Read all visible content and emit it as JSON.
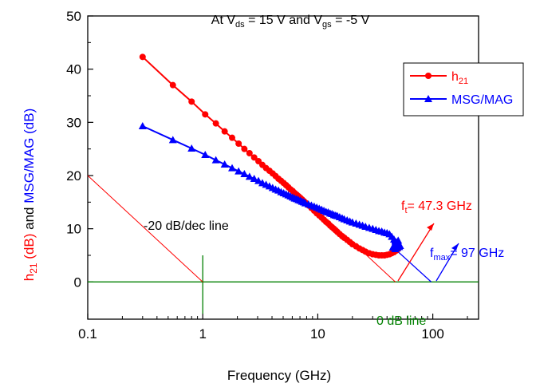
{
  "chart_data": {
    "type": "line",
    "title": "At V_ds = 15 V and V_gs = -5 V",
    "title_parts": {
      "at": "At V",
      "ds_sub": "ds",
      "mid": " = 15 V and V",
      "gs_sub": "gs",
      "end": " = -5 V"
    },
    "xlabel": "Frequency (GHz)",
    "ylabel": {
      "h21_main": "h",
      "h21_sub": "21",
      "h21_unit": " (dB)",
      "and": " and ",
      "msg": "MSG/MAG (dB)"
    },
    "x_scale": "log",
    "xlim": [
      0.1,
      250
    ],
    "ylim": [
      -7,
      50
    ],
    "x_ticks": [
      0.1,
      1,
      10,
      100
    ],
    "x_tick_labels": [
      "0.1",
      "1",
      "10",
      "100"
    ],
    "y_ticks": [
      0,
      10,
      20,
      30,
      40,
      50
    ],
    "y_tick_labels": [
      "0",
      "10",
      "20",
      "30",
      "40",
      "50"
    ],
    "grid": false,
    "legend_position": "top-right",
    "series": [
      {
        "name": "h21",
        "legend_main": "h",
        "legend_sub": "21",
        "color": "#ff0000",
        "marker": "circle",
        "x": [
          0.3,
          0.55,
          0.8,
          1.05,
          1.3,
          1.55,
          1.8,
          2.05,
          2.3,
          2.55,
          2.8,
          3.05,
          3.3,
          3.55,
          3.8,
          4.05,
          4.3,
          4.55,
          4.8,
          5.05,
          5.3,
          5.55,
          5.8,
          6.05,
          6.3,
          6.55,
          6.8,
          7.05,
          7.3,
          7.55,
          7.8,
          8.3,
          8.8,
          9.3,
          9.8,
          10.3,
          10.8,
          11.3,
          11.8,
          12.3,
          12.8,
          13.3,
          13.8,
          14.3,
          14.8,
          15.5,
          16.3,
          17.0,
          18.0,
          19.0,
          20.0,
          21.5,
          23.0,
          24.5,
          26.0,
          28.0,
          30.0,
          32.0,
          34.0,
          36.0,
          38.0,
          40.0,
          42.0,
          44.0,
          46.0,
          48.0,
          50.0
        ],
        "y": [
          42.3,
          37.0,
          33.9,
          31.5,
          29.8,
          28.3,
          27.1,
          26.0,
          25.0,
          24.2,
          23.4,
          22.7,
          22.0,
          21.4,
          20.9,
          20.4,
          19.9,
          19.4,
          19.0,
          18.6,
          18.2,
          17.8,
          17.4,
          17.1,
          16.7,
          16.4,
          16.1,
          15.8,
          15.5,
          15.2,
          14.9,
          14.4,
          13.9,
          13.4,
          12.9,
          12.5,
          12.1,
          11.7,
          11.3,
          11.0,
          10.6,
          10.3,
          10.0,
          9.7,
          9.4,
          9.0,
          8.6,
          8.3,
          7.9,
          7.5,
          7.1,
          6.7,
          6.3,
          6.0,
          5.7,
          5.4,
          5.2,
          5.1,
          5.0,
          5.0,
          5.0,
          5.1,
          5.2,
          5.4,
          5.6,
          5.9,
          6.2
        ]
      },
      {
        "name": "MSG/MAG",
        "legend_main": "MSG/MAG",
        "legend_sub": "",
        "color": "#0000ff",
        "marker": "triangle",
        "x": [
          0.3,
          0.55,
          0.8,
          1.05,
          1.3,
          1.55,
          1.8,
          2.05,
          2.3,
          2.55,
          2.8,
          3.05,
          3.3,
          3.55,
          3.8,
          4.05,
          4.3,
          4.55,
          4.8,
          5.05,
          5.3,
          5.55,
          5.8,
          6.05,
          6.3,
          6.55,
          6.8,
          7.05,
          7.3,
          7.55,
          7.8,
          8.3,
          8.8,
          9.3,
          9.8,
          10.3,
          10.8,
          11.3,
          11.8,
          12.3,
          12.8,
          13.3,
          13.8,
          14.3,
          14.8,
          15.5,
          16.3,
          17.0,
          18.0,
          19.0,
          20.0,
          21.5,
          23.0,
          24.5,
          26.0,
          28.0,
          30.0,
          32.0,
          34.0,
          36.0,
          38.0,
          40.0,
          42.0,
          44.0,
          45.0,
          46.0,
          47.0,
          48.0,
          49.0,
          50.0,
          51.0,
          52.0
        ],
        "y": [
          29.3,
          26.7,
          25.1,
          23.9,
          22.9,
          22.1,
          21.4,
          20.8,
          20.3,
          19.8,
          19.4,
          19.0,
          18.6,
          18.3,
          18.0,
          17.7,
          17.4,
          17.2,
          16.9,
          16.7,
          16.5,
          16.3,
          16.1,
          15.9,
          15.7,
          15.6,
          15.4,
          15.3,
          15.1,
          15.0,
          14.8,
          14.6,
          14.4,
          14.2,
          14.0,
          13.8,
          13.6,
          13.4,
          13.2,
          13.1,
          12.9,
          12.8,
          12.6,
          12.5,
          12.4,
          12.2,
          12.0,
          11.8,
          11.6,
          11.4,
          11.2,
          11.0,
          10.8,
          10.6,
          10.4,
          10.2,
          10.0,
          9.8,
          9.6,
          9.5,
          9.3,
          9.2,
          9.0,
          8.5,
          6.5,
          8.0,
          6.2,
          7.5,
          6.4,
          7.8,
          6.6,
          6.8
        ]
      }
    ],
    "annotations": {
      "slope_text": "-20 dB/dec line",
      "zero_db_text": "0 dB line",
      "ft_main": "f",
      "ft_sub": "t",
      "ft_value": "= 47.3 GHz",
      "fmax_main": "f",
      "fmax_sub": "max",
      "fmax_value": "= 97 GHz",
      "ft_x": 47.3,
      "fmax_x": 97
    },
    "reference_lines": {
      "slope_line": {
        "x": [
          0.1,
          1
        ],
        "y": [
          20,
          0
        ]
      },
      "zero_db_line": {
        "x": [
          0.1,
          250
        ],
        "y": [
          0,
          0
        ]
      },
      "unity_marker_x": 1,
      "h21_extrapolation": {
        "x": [
          20,
          47.3
        ],
        "y": [
          7.5,
          0
        ]
      },
      "msg_extrapolation": {
        "x": [
          48,
          97
        ],
        "y": [
          6,
          0
        ]
      }
    },
    "colors": {
      "h21": "#ff0000",
      "msg": "#0000ff",
      "reference": "#008000",
      "axis": "#000000"
    }
  }
}
